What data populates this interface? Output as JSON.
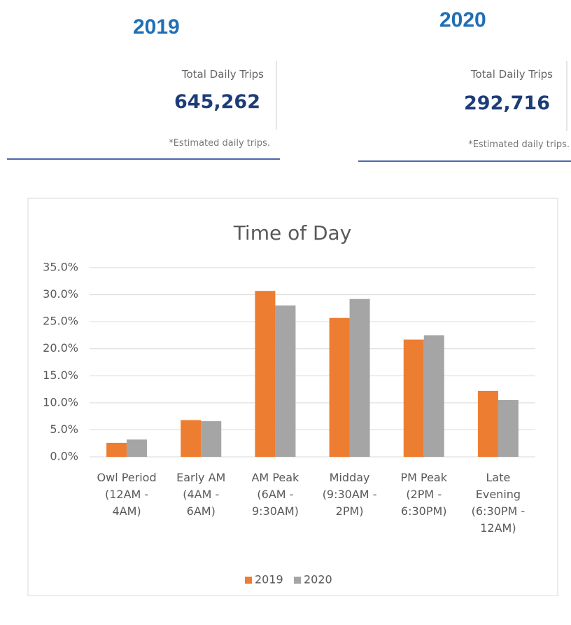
{
  "panels": [
    {
      "year": "2019",
      "label": "Total Daily Trips",
      "value": "645,262",
      "note": "*Estimated daily trips."
    },
    {
      "year": "2020",
      "label": "Total Daily Trips",
      "value": "292,716",
      "note": "*Estimated daily trips."
    }
  ],
  "chart_data": {
    "type": "bar",
    "title": "Time of Day",
    "categories": [
      "Owl Period (12AM - 4AM)",
      "Early AM (4AM - 6AM)",
      "AM Peak (6AM - 9:30AM)",
      "Midday (9:30AM - 2PM)",
      "PM Peak (2PM - 6:30PM)",
      "Late Evening (6:30PM - 12AM)"
    ],
    "series": [
      {
        "name": "2019",
        "color": "#ed7d31",
        "values": [
          2.6,
          6.8,
          30.7,
          25.7,
          21.7,
          12.2
        ]
      },
      {
        "name": "2020",
        "color": "#a5a5a5",
        "values": [
          3.2,
          6.6,
          28.0,
          29.2,
          22.5,
          10.5
        ]
      }
    ],
    "ylim": [
      0,
      35
    ],
    "yticks": [
      {
        "value": 0,
        "label": "0.0%"
      },
      {
        "value": 5,
        "label": "5.0%"
      },
      {
        "value": 10,
        "label": "10.0%"
      },
      {
        "value": 15,
        "label": "15.0%"
      },
      {
        "value": 20,
        "label": "20.0%"
      },
      {
        "value": 25,
        "label": "25.0%"
      },
      {
        "value": 30,
        "label": "30.0%"
      },
      {
        "value": 35,
        "label": "35.0%"
      }
    ],
    "grid": true,
    "legend": "bottom"
  }
}
